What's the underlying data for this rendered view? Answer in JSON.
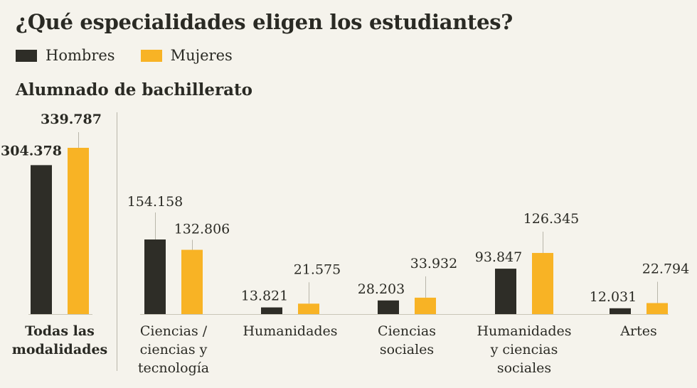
{
  "chart_data": {
    "type": "bar",
    "title": "¿Qué especialidades eligen los estudiantes?",
    "subtitle": "Alumnado de bachillerato",
    "categories": [
      "Todas las modalidades",
      "Ciencias / ciencias y tecnología",
      "Humanidades",
      "Ciencias sociales",
      "Humanidades y ciencias sociales",
      "Artes"
    ],
    "category_lines": [
      [
        "Todas las",
        "modalidades"
      ],
      [
        "Ciencias /",
        "ciencias y",
        "tecnología"
      ],
      [
        "Humanidades"
      ],
      [
        "Ciencias",
        "sociales"
      ],
      [
        "Humanidades",
        "y ciencias",
        "sociales"
      ],
      [
        "Artes"
      ]
    ],
    "series": [
      {
        "name": "Hombres",
        "color": "#2e2d27",
        "values": [
          304378,
          154158,
          13821,
          28203,
          93847,
          12031
        ],
        "labels": [
          "304.378",
          "154.158",
          "13.821",
          "28.203",
          "93.847",
          "12.031"
        ]
      },
      {
        "name": "Mujeres",
        "color": "#f8b325",
        "values": [
          339787,
          132806,
          21575,
          33932,
          126345,
          22794
        ],
        "labels": [
          "339.787",
          "132.806",
          "21.575",
          "33.932",
          "126.345",
          "22.794"
        ]
      }
    ],
    "scales": [
      {
        "categories": [
          0
        ],
        "ylim": [
          0,
          339787
        ]
      },
      {
        "categories": [
          1,
          2,
          3,
          4,
          5
        ],
        "ylim": [
          0,
          154158
        ]
      }
    ]
  }
}
